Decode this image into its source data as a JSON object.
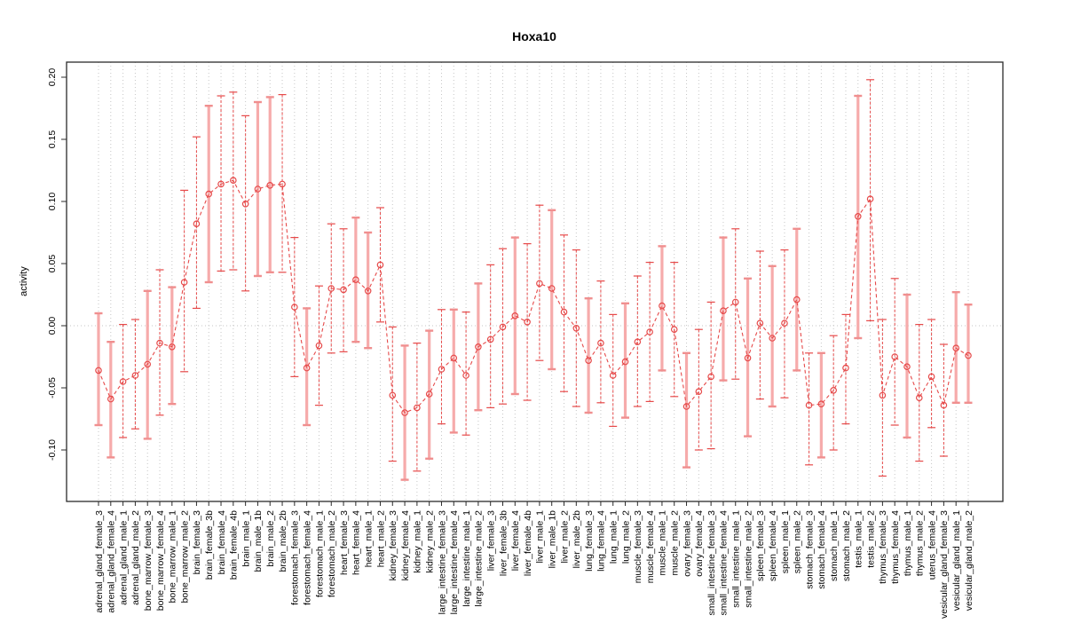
{
  "window": {
    "background": "#ffffff"
  },
  "chart": {
    "title": "Hoxa10",
    "ylabel": "activity"
  },
  "chart_data": {
    "type": "line",
    "subtype": "points-with-error-bars",
    "title": "Hoxa10",
    "xlabel": "",
    "ylabel": "activity",
    "ylim": [
      -0.141,
      0.212
    ],
    "yticks": [
      "-0.10",
      "-0.05",
      "0.00",
      "0.05",
      "0.10",
      "0.15",
      "0.20"
    ],
    "ytick_values": [
      -0.1,
      -0.05,
      0.0,
      0.05,
      0.1,
      0.15,
      0.2
    ],
    "grid": "vertical dotted gridline at every category; horizontal dotted line at y=0",
    "legend": "none",
    "line_color": "#e64a4a",
    "point_style": "open-circle",
    "errorbar_dashed_color": "#e64a4a",
    "errorbar_solid_color": "#f6abab",
    "points": [
      {
        "label": "adrenal_gland_female_3",
        "value": -0.036,
        "lo": -0.08,
        "hi": 0.01,
        "bar": "solid"
      },
      {
        "label": "adrenal_gland_female_4",
        "value": -0.059,
        "lo": -0.106,
        "hi": -0.013,
        "bar": "solid"
      },
      {
        "label": "adrenal_gland_male_1",
        "value": -0.045,
        "lo": -0.09,
        "hi": 0.001,
        "bar": "dashed"
      },
      {
        "label": "adrenal_gland_male_2",
        "value": -0.04,
        "lo": -0.083,
        "hi": 0.005,
        "bar": "dashed"
      },
      {
        "label": "bone_marrow_female_3",
        "value": -0.031,
        "lo": -0.091,
        "hi": 0.028,
        "bar": "solid"
      },
      {
        "label": "bone_marrow_female_4",
        "value": -0.014,
        "lo": -0.072,
        "hi": 0.045,
        "bar": "dashed"
      },
      {
        "label": "bone_marrow_male_1",
        "value": -0.017,
        "lo": -0.063,
        "hi": 0.031,
        "bar": "solid"
      },
      {
        "label": "bone_marrow_male_2",
        "value": 0.035,
        "lo": -0.037,
        "hi": 0.109,
        "bar": "dashed"
      },
      {
        "label": "brain_female_3",
        "value": 0.082,
        "lo": 0.014,
        "hi": 0.152,
        "bar": "dashed"
      },
      {
        "label": "brain_female_3b",
        "value": 0.106,
        "lo": 0.035,
        "hi": 0.177,
        "bar": "solid"
      },
      {
        "label": "brain_female_4",
        "value": 0.114,
        "lo": 0.044,
        "hi": 0.185,
        "bar": "dashed"
      },
      {
        "label": "brain_female_4b",
        "value": 0.117,
        "lo": 0.045,
        "hi": 0.188,
        "bar": "dashed"
      },
      {
        "label": "brain_male_1",
        "value": 0.098,
        "lo": 0.028,
        "hi": 0.169,
        "bar": "dashed"
      },
      {
        "label": "brain_male_1b",
        "value": 0.11,
        "lo": 0.04,
        "hi": 0.18,
        "bar": "solid"
      },
      {
        "label": "brain_male_2",
        "value": 0.113,
        "lo": 0.043,
        "hi": 0.184,
        "bar": "solid"
      },
      {
        "label": "brain_male_2b",
        "value": 0.114,
        "lo": 0.043,
        "hi": 0.186,
        "bar": "dashed"
      },
      {
        "label": "forestomach_female_3",
        "value": 0.015,
        "lo": -0.041,
        "hi": 0.071,
        "bar": "dashed"
      },
      {
        "label": "forestomach_female_4",
        "value": -0.034,
        "lo": -0.08,
        "hi": 0.014,
        "bar": "solid"
      },
      {
        "label": "forestomach_male_1",
        "value": -0.016,
        "lo": -0.064,
        "hi": 0.032,
        "bar": "dashed"
      },
      {
        "label": "forestomach_male_2",
        "value": 0.03,
        "lo": -0.022,
        "hi": 0.082,
        "bar": "dashed"
      },
      {
        "label": "heart_female_3",
        "value": 0.029,
        "lo": -0.021,
        "hi": 0.078,
        "bar": "dashed"
      },
      {
        "label": "heart_female_4",
        "value": 0.037,
        "lo": -0.013,
        "hi": 0.087,
        "bar": "solid"
      },
      {
        "label": "heart_male_1",
        "value": 0.028,
        "lo": -0.018,
        "hi": 0.075,
        "bar": "solid"
      },
      {
        "label": "heart_male_2",
        "value": 0.049,
        "lo": 0.003,
        "hi": 0.095,
        "bar": "dashed"
      },
      {
        "label": "kidney_female_3",
        "value": -0.056,
        "lo": -0.109,
        "hi": -0.001,
        "bar": "dashed"
      },
      {
        "label": "kidney_female_4",
        "value": -0.07,
        "lo": -0.124,
        "hi": -0.016,
        "bar": "solid"
      },
      {
        "label": "kidney_male_1",
        "value": -0.066,
        "lo": -0.117,
        "hi": -0.014,
        "bar": "dashed"
      },
      {
        "label": "kidney_male_2",
        "value": -0.055,
        "lo": -0.107,
        "hi": -0.004,
        "bar": "solid"
      },
      {
        "label": "large_intestine_female_3",
        "value": -0.035,
        "lo": -0.079,
        "hi": 0.013,
        "bar": "dashed"
      },
      {
        "label": "large_intestine_female_4",
        "value": -0.026,
        "lo": -0.086,
        "hi": 0.013,
        "bar": "solid"
      },
      {
        "label": "large_intestine_male_1",
        "value": -0.04,
        "lo": -0.088,
        "hi": 0.011,
        "bar": "dashed"
      },
      {
        "label": "large_intestine_male_2",
        "value": -0.017,
        "lo": -0.068,
        "hi": 0.034,
        "bar": "solid"
      },
      {
        "label": "liver_female_3",
        "value": -0.011,
        "lo": -0.066,
        "hi": 0.049,
        "bar": "dashed"
      },
      {
        "label": "liver_female_3b",
        "value": -0.001,
        "lo": -0.063,
        "hi": 0.062,
        "bar": "dashed"
      },
      {
        "label": "liver_female_4",
        "value": 0.008,
        "lo": -0.055,
        "hi": 0.071,
        "bar": "solid"
      },
      {
        "label": "liver_female_4b",
        "value": 0.003,
        "lo": -0.06,
        "hi": 0.066,
        "bar": "dashed"
      },
      {
        "label": "liver_male_1",
        "value": 0.034,
        "lo": -0.028,
        "hi": 0.097,
        "bar": "dashed"
      },
      {
        "label": "liver_male_1b",
        "value": 0.03,
        "lo": -0.035,
        "hi": 0.093,
        "bar": "solid"
      },
      {
        "label": "liver_male_2",
        "value": 0.011,
        "lo": -0.053,
        "hi": 0.073,
        "bar": "dashed"
      },
      {
        "label": "liver_male_2b",
        "value": -0.002,
        "lo": -0.065,
        "hi": 0.061,
        "bar": "dashed"
      },
      {
        "label": "lung_female_3",
        "value": -0.028,
        "lo": -0.07,
        "hi": 0.022,
        "bar": "solid"
      },
      {
        "label": "lung_female_4",
        "value": -0.014,
        "lo": -0.062,
        "hi": 0.036,
        "bar": "dashed"
      },
      {
        "label": "lung_male_1",
        "value": -0.04,
        "lo": -0.081,
        "hi": 0.009,
        "bar": "dashed"
      },
      {
        "label": "lung_male_2",
        "value": -0.029,
        "lo": -0.074,
        "hi": 0.018,
        "bar": "solid"
      },
      {
        "label": "muscle_female_3",
        "value": -0.013,
        "lo": -0.065,
        "hi": 0.04,
        "bar": "dashed"
      },
      {
        "label": "muscle_female_4",
        "value": -0.005,
        "lo": -0.061,
        "hi": 0.051,
        "bar": "dashed"
      },
      {
        "label": "muscle_male_1",
        "value": 0.016,
        "lo": -0.036,
        "hi": 0.064,
        "bar": "solid"
      },
      {
        "label": "muscle_male_2",
        "value": -0.003,
        "lo": -0.057,
        "hi": 0.051,
        "bar": "dashed"
      },
      {
        "label": "ovary_female_3",
        "value": -0.065,
        "lo": -0.114,
        "hi": -0.022,
        "bar": "solid"
      },
      {
        "label": "ovary_female_4",
        "value": -0.053,
        "lo": -0.1,
        "hi": -0.003,
        "bar": "dashed"
      },
      {
        "label": "small_intestine_female_3",
        "value": -0.041,
        "lo": -0.099,
        "hi": 0.019,
        "bar": "dashed"
      },
      {
        "label": "small_intestine_female_4",
        "value": 0.012,
        "lo": -0.044,
        "hi": 0.071,
        "bar": "solid"
      },
      {
        "label": "small_intestine_male_1",
        "value": 0.019,
        "lo": -0.043,
        "hi": 0.078,
        "bar": "dashed"
      },
      {
        "label": "small_intestine_male_2",
        "value": -0.026,
        "lo": -0.089,
        "hi": 0.038,
        "bar": "solid"
      },
      {
        "label": "spleen_female_3",
        "value": 0.002,
        "lo": -0.059,
        "hi": 0.06,
        "bar": "dashed"
      },
      {
        "label": "spleen_female_4",
        "value": -0.01,
        "lo": -0.065,
        "hi": 0.048,
        "bar": "solid"
      },
      {
        "label": "spleen_male_1",
        "value": 0.002,
        "lo": -0.058,
        "hi": 0.061,
        "bar": "dashed"
      },
      {
        "label": "spleen_male_2",
        "value": 0.021,
        "lo": -0.036,
        "hi": 0.078,
        "bar": "solid"
      },
      {
        "label": "stomach_female_3",
        "value": -0.064,
        "lo": -0.112,
        "hi": -0.022,
        "bar": "dashed"
      },
      {
        "label": "stomach_female_4",
        "value": -0.063,
        "lo": -0.106,
        "hi": -0.022,
        "bar": "solid"
      },
      {
        "label": "stomach_male_1",
        "value": -0.052,
        "lo": -0.1,
        "hi": -0.008,
        "bar": "dashed"
      },
      {
        "label": "stomach_male_2",
        "value": -0.034,
        "lo": -0.079,
        "hi": 0.009,
        "bar": "dashed"
      },
      {
        "label": "testis_male_1",
        "value": 0.088,
        "lo": -0.01,
        "hi": 0.185,
        "bar": "solid"
      },
      {
        "label": "testis_male_2",
        "value": 0.102,
        "lo": 0.004,
        "hi": 0.198,
        "bar": "dashed"
      },
      {
        "label": "thymus_female_3",
        "value": -0.056,
        "lo": -0.121,
        "hi": 0.005,
        "bar": "dashed"
      },
      {
        "label": "thymus_female_4",
        "value": -0.025,
        "lo": -0.08,
        "hi": 0.038,
        "bar": "dashed"
      },
      {
        "label": "thymus_male_1",
        "value": -0.033,
        "lo": -0.09,
        "hi": 0.025,
        "bar": "solid"
      },
      {
        "label": "thymus_male_2",
        "value": -0.058,
        "lo": -0.109,
        "hi": 0.001,
        "bar": "dashed"
      },
      {
        "label": "uterus_female_4",
        "value": -0.041,
        "lo": -0.082,
        "hi": 0.005,
        "bar": "dashed"
      },
      {
        "label": "vesicular_gland_female_3",
        "value": -0.064,
        "lo": -0.105,
        "hi": -0.015,
        "bar": "dashed"
      },
      {
        "label": "vesicular_gland_male_1",
        "value": -0.018,
        "lo": -0.062,
        "hi": 0.027,
        "bar": "solid"
      },
      {
        "label": "vesicular_gland_male_2",
        "value": -0.024,
        "lo": -0.062,
        "hi": 0.017,
        "bar": "solid"
      }
    ]
  }
}
